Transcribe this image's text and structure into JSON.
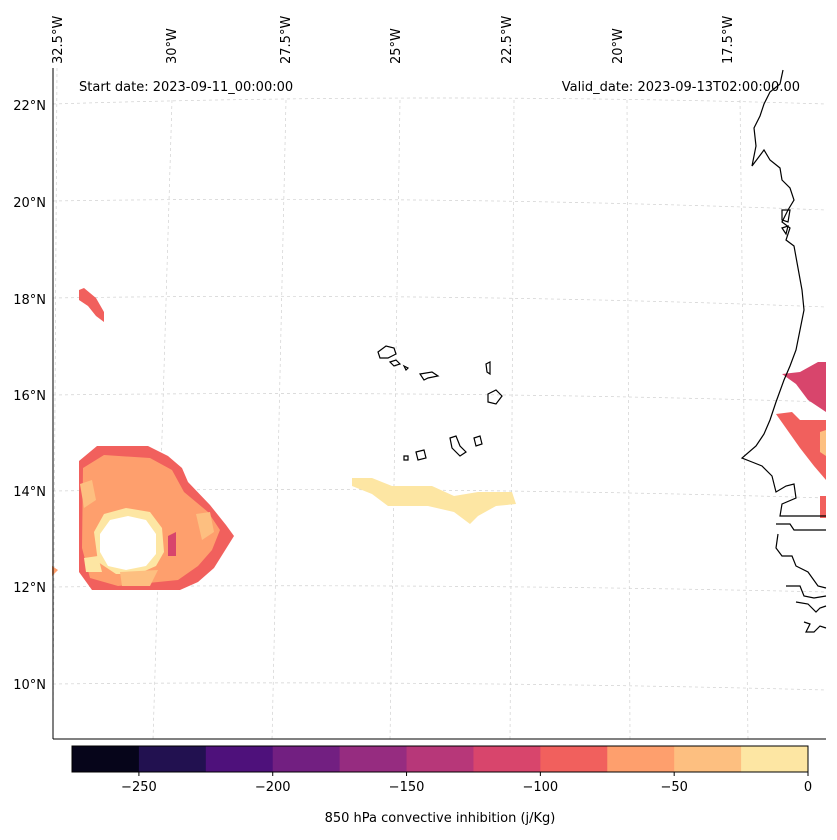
{
  "map": {
    "start_label": "Start date: 2023-09-11_00:00:00",
    "valid_label": "Valid_date: 2023-09-13T02:00:00.00",
    "lon_labels": [
      "32.5°W",
      "30°W",
      "27.5°W",
      "25°W",
      "22.5°W",
      "20°W",
      "17.5°W"
    ],
    "lat_labels": [
      "22°N",
      "20°N",
      "18°N",
      "16°N",
      "14°N",
      "12°N",
      "10°N"
    ],
    "coastline_color": "#000000",
    "grid": true
  },
  "colorbar": {
    "label": "850 hPa convective inhibition (j/Kg)",
    "tick_labels": [
      "−250",
      "−200",
      "−150",
      "−100",
      "−50",
      "0"
    ],
    "range": [
      -275,
      0
    ],
    "step": 25,
    "colors": [
      "#06051a",
      "#221150",
      "#4e117b",
      "#721f81",
      "#962c80",
      "#b73779",
      "#d8456c",
      "#f1605d",
      "#fe9f6d",
      "#fdbf80",
      "#fde6a3"
    ]
  }
}
